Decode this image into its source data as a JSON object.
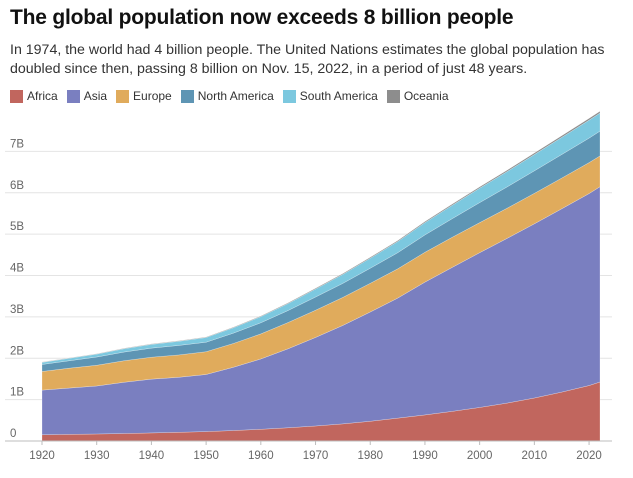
{
  "header": {
    "title": "The global population now exceeds 8 billion people",
    "subtitle": "In 1974, the world had 4 billion people. The United Nations estimates the global population has doubled since then, passing 8 billion on Nov. 15, 2022, in a period of just 48 years."
  },
  "chart_data": {
    "type": "area",
    "stacked": true,
    "x": [
      1920,
      1925,
      1930,
      1935,
      1940,
      1945,
      1950,
      1955,
      1960,
      1965,
      1970,
      1975,
      1980,
      1985,
      1990,
      1995,
      2000,
      2005,
      2010,
      2015,
      2020,
      2022
    ],
    "ylim": [
      0,
      8000000000
    ],
    "yticks": [
      0,
      1000000000,
      2000000000,
      3000000000,
      4000000000,
      5000000000,
      6000000000,
      7000000000
    ],
    "ytick_labels": [
      "0",
      "1B",
      "2B",
      "3B",
      "4B",
      "5B",
      "6B",
      "7B"
    ],
    "xticks": [
      1920,
      1930,
      1940,
      1950,
      1960,
      1970,
      1980,
      1990,
      2000,
      2010,
      2020
    ],
    "xtick_labels": [
      "1920",
      "1930",
      "1940",
      "1950",
      "1960",
      "1970",
      "1980",
      "1990",
      "2000",
      "2010",
      "2020"
    ],
    "grid": true,
    "legend_position": "top-left",
    "series": [
      {
        "name": "Africa",
        "color": "#c1665e",
        "values": [
          150000000,
          160000000,
          170000000,
          180000000,
          195000000,
          210000000,
          228000000,
          253000000,
          283000000,
          320000000,
          363000000,
          414000000,
          477000000,
          552000000,
          630000000,
          717000000,
          811000000,
          916000000,
          1039000000,
          1182000000,
          1340000000,
          1426000000
        ]
      },
      {
        "name": "Asia",
        "color": "#7a7fc0",
        "values": [
          1080000000,
          1120000000,
          1160000000,
          1240000000,
          1300000000,
          1330000000,
          1380000000,
          1530000000,
          1700000000,
          1910000000,
          2140000000,
          2380000000,
          2640000000,
          2900000000,
          3210000000,
          3480000000,
          3740000000,
          3980000000,
          4210000000,
          4430000000,
          4640000000,
          4720000000
        ]
      },
      {
        "name": "Europe",
        "color": "#e0ab5c",
        "values": [
          450000000,
          480000000,
          500000000,
          520000000,
          530000000,
          540000000,
          550000000,
          575000000,
          605000000,
          635000000,
          657000000,
          677000000,
          694000000,
          707000000,
          721000000,
          728000000,
          726000000,
          729000000,
          736000000,
          742000000,
          748000000,
          744000000
        ]
      },
      {
        "name": "North America",
        "color": "#5e95b4",
        "values": [
          170000000,
          180000000,
          200000000,
          210000000,
          220000000,
          230000000,
          230000000,
          250000000,
          270000000,
          290000000,
          320000000,
          340000000,
          365000000,
          390000000,
          420000000,
          450000000,
          485000000,
          515000000,
          545000000,
          570000000,
          592000000,
          600000000
        ]
      },
      {
        "name": "South America",
        "color": "#7cc8df",
        "values": [
          50000000,
          60000000,
          70000000,
          80000000,
          90000000,
          100000000,
          114000000,
          130000000,
          148000000,
          168000000,
          192000000,
          217000000,
          242000000,
          270000000,
          297000000,
          323000000,
          349000000,
          371000000,
          393000000,
          415000000,
          434000000,
          436000000
        ]
      },
      {
        "name": "Oceania",
        "color": "#8d8d8d",
        "values": [
          9000000,
          10000000,
          10000000,
          11000000,
          11000000,
          12000000,
          12700000,
          14000000,
          16000000,
          17500000,
          19700000,
          21300000,
          22900000,
          24800000,
          27000000,
          29000000,
          31000000,
          34000000,
          37000000,
          40000000,
          43000000,
          45000000
        ]
      }
    ]
  }
}
